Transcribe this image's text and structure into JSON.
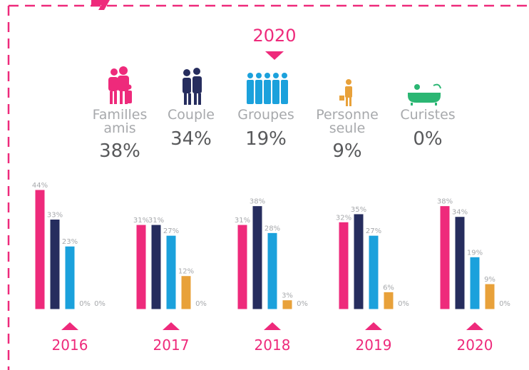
{
  "summary": {
    "title": "2020",
    "items": [
      {
        "label": [
          "Familles",
          "amis"
        ],
        "value": 38,
        "value_label": "38%",
        "color": "#ee2a7b"
      },
      {
        "label": [
          "Couple"
        ],
        "value": 34,
        "value_label": "34%",
        "color": "#262d5e"
      },
      {
        "label": [
          "Groupes"
        ],
        "value": 19,
        "value_label": "19%",
        "color": "#1ba1dc"
      },
      {
        "label": [
          "Personne",
          "seule"
        ],
        "value": 9,
        "value_label": "9%",
        "color": "#e8a13a"
      },
      {
        "label": [
          "Curistes"
        ],
        "value": 0,
        "value_label": "0%",
        "color": "#2bb673"
      }
    ]
  },
  "chart_data": {
    "type": "bar",
    "categories": [
      "2016",
      "2017",
      "2018",
      "2019",
      "2020"
    ],
    "series": [
      {
        "color": "#ee2a7b",
        "values": [
          44,
          31,
          31,
          32,
          38
        ],
        "value_labels": [
          "44%",
          "31%",
          "31%",
          "32%",
          "38%"
        ]
      },
      {
        "color": "#262d5e",
        "values": [
          33,
          31,
          38,
          35,
          34
        ],
        "value_labels": [
          "33%",
          "31%",
          "38%",
          "35%",
          "34%"
        ]
      },
      {
        "color": "#1ba1dc",
        "values": [
          23,
          27,
          28,
          27,
          19
        ],
        "value_labels": [
          "23%",
          "27%",
          "28%",
          "27%",
          "19%"
        ]
      },
      {
        "color": "#e8a13a",
        "values": [
          0,
          12,
          3,
          6,
          9
        ],
        "value_labels": [
          "0%",
          "12%",
          "3%",
          "6%",
          "9%"
        ]
      },
      {
        "color": "#2bb673",
        "values": [
          0,
          0,
          0,
          0,
          0
        ],
        "value_labels": [
          "0%",
          "0%",
          "0%",
          "0%",
          "0%"
        ]
      }
    ]
  }
}
